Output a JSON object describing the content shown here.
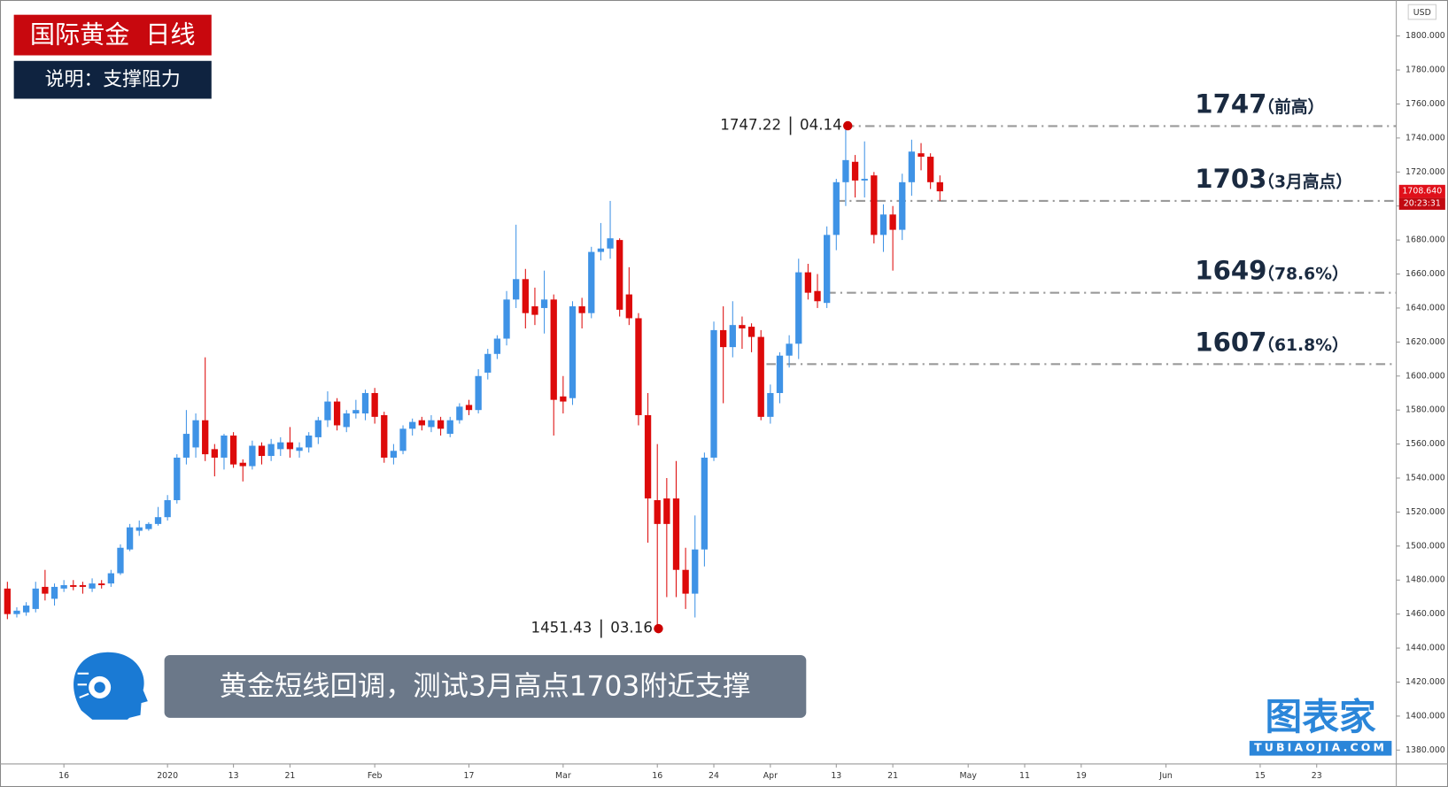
{
  "header": {
    "title": "国际黄金  日线",
    "subtitle": "说明：支撑阻力"
  },
  "banner": "黄金短线回调，测试3月高点1703附近支撑",
  "logo": {
    "name": "图表家",
    "url": "TUBIAOJIA.COM"
  },
  "chart_data": {
    "type": "candlestick",
    "currency": "USD",
    "up_color": "#3f93e6",
    "down_color": "#dd0a0a",
    "open": [
      1475,
      1460,
      1461,
      1463,
      1476,
      1469,
      1475,
      1477,
      1477,
      1475,
      1478,
      1478,
      1484,
      1498,
      1509,
      1510,
      1513,
      1517,
      1527,
      1552,
      1558,
      1574,
      1557,
      1552,
      1565,
      1549,
      1547,
      1559,
      1553,
      1557,
      1561,
      1556,
      1558,
      1564,
      1574,
      1585,
      1570,
      1578,
      1578,
      1590,
      1577,
      1552,
      1556,
      1569,
      1574,
      1570,
      1574,
      1566,
      1574,
      1583,
      1580,
      1602,
      1613,
      1622,
      1645,
      1657,
      1641,
      1640,
      1645,
      1588,
      1587,
      1641,
      1637,
      1673,
      1675,
      1680,
      1648,
      1634,
      1577,
      1527,
      1528,
      1528,
      1486,
      1472,
      1498,
      1552,
      1627,
      1617,
      1630,
      1629,
      1623,
      1576,
      1590,
      1612,
      1619,
      1661,
      1650,
      1643,
      1683,
      1714,
      1726,
      1715,
      1718,
      1683,
      1695,
      1686,
      1714,
      1731,
      1729,
      1714
    ],
    "close": [
      1460,
      1462,
      1465,
      1475,
      1472,
      1476,
      1477,
      1476,
      1476,
      1478,
      1477,
      1484,
      1499,
      1511,
      1511,
      1513,
      1517,
      1527,
      1552,
      1566,
      1574,
      1554,
      1552,
      1565,
      1548,
      1547,
      1559,
      1553,
      1560,
      1561,
      1557,
      1558,
      1565,
      1574,
      1585,
      1571,
      1578,
      1580,
      1590,
      1576,
      1552,
      1556,
      1569,
      1573,
      1571,
      1574,
      1569,
      1574,
      1582,
      1580,
      1600,
      1613,
      1622,
      1645,
      1657,
      1637,
      1636,
      1645,
      1586,
      1585,
      1641,
      1637,
      1673,
      1675,
      1681,
      1639,
      1634,
      1577,
      1528,
      1513,
      1513,
      1486,
      1472,
      1498,
      1552,
      1627,
      1617,
      1630,
      1628,
      1623,
      1576,
      1590,
      1612,
      1619,
      1661,
      1649,
      1644,
      1683,
      1714,
      1727,
      1715,
      1716,
      1683,
      1695,
      1686,
      1714,
      1732,
      1729,
      1714,
      1708.64
    ],
    "high": [
      1479,
      1464,
      1467,
      1479,
      1486,
      1478,
      1480,
      1480,
      1479,
      1481,
      1480,
      1486,
      1501,
      1513,
      1515,
      1514,
      1523,
      1530,
      1554,
      1580,
      1578,
      1611,
      1560,
      1566,
      1567,
      1551,
      1562,
      1561,
      1563,
      1564,
      1570,
      1561,
      1567,
      1576,
      1591,
      1587,
      1580,
      1586,
      1592,
      1593,
      1579,
      1560,
      1571,
      1575,
      1576,
      1577,
      1576,
      1576,
      1584,
      1586,
      1604,
      1616,
      1624,
      1650,
      1689,
      1663,
      1652,
      1662,
      1648,
      1600,
      1644,
      1646,
      1676,
      1690,
      1703,
      1681,
      1664,
      1637,
      1590,
      1560,
      1540,
      1550,
      1499,
      1518,
      1555,
      1632,
      1641,
      1644,
      1635,
      1631,
      1627,
      1595,
      1614,
      1624,
      1669,
      1666,
      1660,
      1688,
      1716,
      1747.22,
      1730,
      1738,
      1720,
      1701,
      1700,
      1719,
      1739,
      1737,
      1731,
      1718
    ],
    "low": [
      1457,
      1458,
      1459,
      1461,
      1468,
      1465,
      1473,
      1474,
      1472,
      1473,
      1475,
      1476,
      1483,
      1497,
      1506,
      1509,
      1512,
      1515,
      1525,
      1548,
      1552,
      1550,
      1541,
      1545,
      1546,
      1538,
      1545,
      1548,
      1550,
      1553,
      1552,
      1552,
      1555,
      1560,
      1570,
      1568,
      1567,
      1575,
      1574,
      1572,
      1549,
      1548,
      1554,
      1565,
      1568,
      1567,
      1565,
      1564,
      1572,
      1577,
      1578,
      1598,
      1610,
      1618,
      1640,
      1628,
      1630,
      1625,
      1565,
      1578,
      1583,
      1628,
      1634,
      1668,
      1669,
      1635,
      1630,
      1571,
      1502,
      1451.43,
      1470,
      1470,
      1463,
      1458,
      1488,
      1550,
      1584,
      1611,
      1616,
      1614,
      1574,
      1572,
      1584,
      1605,
      1610,
      1645,
      1640,
      1640,
      1674,
      1700,
      1705,
      1705,
      1678,
      1673,
      1662,
      1680,
      1706,
      1721,
      1710,
      1703
    ],
    "xlim": [
      -0.784,
      147.45
    ],
    "xticks": [
      {
        "value": 6,
        "label": "16"
      },
      {
        "value": 17,
        "label": "2020"
      },
      {
        "value": 24,
        "label": "13"
      },
      {
        "value": 30,
        "label": "21"
      },
      {
        "value": 39,
        "label": "Feb"
      },
      {
        "value": 49,
        "label": "17"
      },
      {
        "value": 59,
        "label": "Mar"
      },
      {
        "value": 69,
        "label": "16"
      },
      {
        "value": 75,
        "label": "24"
      },
      {
        "value": 81,
        "label": "Apr"
      },
      {
        "value": 88,
        "label": "13"
      },
      {
        "value": 94,
        "label": "21"
      },
      {
        "value": 102,
        "label": "May"
      },
      {
        "value": 108,
        "label": "11"
      },
      {
        "value": 114,
        "label": "19"
      },
      {
        "value": 123,
        "label": "Jun"
      },
      {
        "value": 133,
        "label": "15"
      },
      {
        "value": 139,
        "label": "23"
      }
    ],
    "ylim": [
      1371.86,
      1821.16
    ],
    "yticks": [
      {
        "value": 1380,
        "label": "1380.000"
      },
      {
        "value": 1400,
        "label": "1400.000"
      },
      {
        "value": 1420,
        "label": "1420.000"
      },
      {
        "value": 1440,
        "label": "1440.000"
      },
      {
        "value": 1460,
        "label": "1460.000"
      },
      {
        "value": 1480,
        "label": "1480.000"
      },
      {
        "value": 1500,
        "label": "1500.000"
      },
      {
        "value": 1520,
        "label": "1520.000"
      },
      {
        "value": 1540,
        "label": "1540.000"
      },
      {
        "value": 1560,
        "label": "1560.000"
      },
      {
        "value": 1580,
        "label": "1580.000"
      },
      {
        "value": 1600,
        "label": "1600.000"
      },
      {
        "value": 1620,
        "label": "1620.000"
      },
      {
        "value": 1640,
        "label": "1640.000"
      },
      {
        "value": 1660,
        "label": "1660.000"
      },
      {
        "value": 1680,
        "label": "1680.000"
      },
      {
        "value": 1700,
        "label": "1700.000"
      },
      {
        "value": 1720,
        "label": "1720.000"
      },
      {
        "value": 1740,
        "label": "1740.000"
      },
      {
        "value": 1760,
        "label": "1760.000"
      },
      {
        "value": 1780,
        "label": "1780.000"
      },
      {
        "value": 1800,
        "label": "1800.000"
      }
    ],
    "levels": [
      {
        "value": 1747,
        "note": "（前高）"
      },
      {
        "value": 1703,
        "note": "（3月高点）"
      },
      {
        "value": 1649,
        "note": "（78.6%）"
      },
      {
        "value": 1607,
        "note": "（61.8%）"
      }
    ],
    "annotations": [
      {
        "value": 1747.22,
        "date": "04.14"
      },
      {
        "value": 1451.43,
        "date": "03.16"
      }
    ],
    "last_price": {
      "value": 1708.64,
      "label": "1708.640"
    },
    "countdown": "20:23:31"
  }
}
